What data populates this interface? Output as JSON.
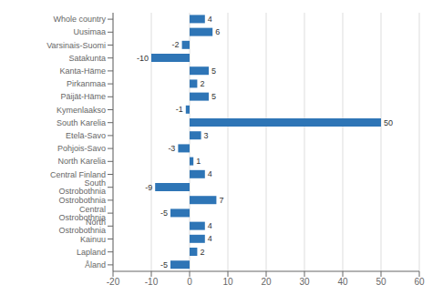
{
  "chart_data": {
    "type": "bar",
    "orientation": "horizontal",
    "categories": [
      "Whole country",
      "Uusimaa",
      "Varsinais-Suomi",
      "Satakunta",
      "Kanta-Häme",
      "Pirkanmaa",
      "Päijät-Häme",
      "Kymenlaakso",
      "South Karelia",
      "Etelä-Savo",
      "Pohjois-Savo",
      "North Karelia",
      "Central Finland",
      "South Ostrobothnia",
      "Ostrobothnia",
      "Central Ostrobothnia",
      "North Ostrobothnia",
      "Kainuu",
      "Lapland",
      "Åland"
    ],
    "values": [
      4,
      6,
      -2,
      -10,
      5,
      2,
      5,
      -1,
      50,
      3,
      -3,
      1,
      4,
      -9,
      7,
      -5,
      4,
      4,
      2,
      -5
    ],
    "color": "#2E75B6",
    "xlim": [
      -20,
      60
    ],
    "xticks": [
      -20,
      -10,
      0,
      10,
      20,
      30,
      40,
      50,
      60
    ],
    "grid": true,
    "data_labels": true
  }
}
